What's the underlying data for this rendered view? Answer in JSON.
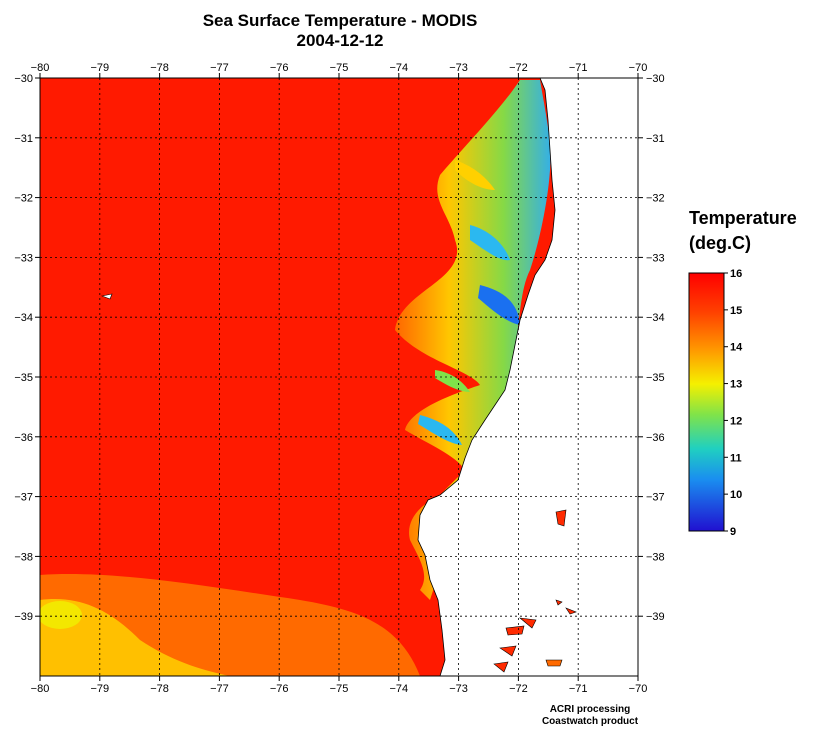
{
  "title": "Sea Surface Temperature - MODIS",
  "date": "2004-12-12",
  "legend": {
    "title_line1": "Temperature",
    "title_line2": "(deg.C)",
    "ticks": [
      "16",
      "15",
      "14",
      "13",
      "12",
      "11",
      "10",
      "9"
    ],
    "range": [
      9,
      16
    ]
  },
  "axes": {
    "lon_ticks": [
      "-80",
      "-79",
      "-78",
      "-77",
      "-76",
      "-75",
      "-74",
      "-73",
      "-72",
      "-71",
      "-70"
    ],
    "lat_ticks": [
      "-30",
      "-31",
      "-32",
      "-33",
      "-34",
      "-35",
      "-36",
      "-37",
      "-38",
      "-39"
    ],
    "lon_range": [
      -80,
      -70
    ],
    "lat_range": [
      -40,
      -30
    ]
  },
  "credits": {
    "line1": "ACRI processing",
    "line2": "Coastwatch product"
  },
  "colors": {
    "warm": "#ff1a00",
    "orange": "#ff6a00",
    "yellow": "#ffd000",
    "green": "#7fe34a",
    "cyan": "#2bb8f0",
    "blue": "#2040e0",
    "land": "#ffffff",
    "grid": "#000000"
  }
}
